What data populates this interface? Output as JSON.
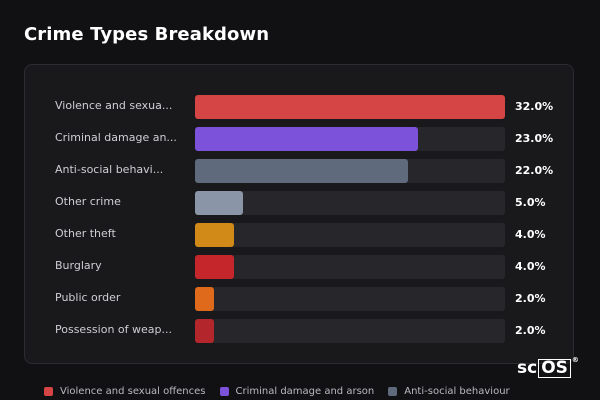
{
  "title": "Crime Types Breakdown",
  "chart_data": {
    "type": "bar",
    "orientation": "horizontal",
    "title": "Crime Types Breakdown",
    "categories": [
      "Violence and sexual offences",
      "Criminal damage and arson",
      "Anti-social behaviour",
      "Other crime",
      "Other theft",
      "Burglary",
      "Public order",
      "Possession of weapons"
    ],
    "display_labels": [
      "Violence and sexua...",
      "Criminal damage an...",
      "Anti-social behavi...",
      "Other crime",
      "Other theft",
      "Burglary",
      "Public order",
      "Possession of weap..."
    ],
    "values": [
      32.0,
      23.0,
      22.0,
      5.0,
      4.0,
      4.0,
      2.0,
      2.0
    ],
    "value_labels": [
      "32.0%",
      "23.0%",
      "22.0%",
      "5.0%",
      "4.0%",
      "4.0%",
      "2.0%",
      "2.0%"
    ],
    "xlim": [
      0,
      32
    ],
    "colors": [
      "#d64545",
      "#7b52d9",
      "#5f6b7d",
      "#8a96a8",
      "#d18a17",
      "#c4262b",
      "#e06a1c",
      "#b3262b"
    ],
    "legend": {
      "placement": "bottom",
      "entries": [
        {
          "name": "Violence and sexual offences",
          "color": "#d64545"
        },
        {
          "name": "Criminal damage and arson",
          "color": "#7b52d9"
        },
        {
          "name": "Anti-social behaviour",
          "color": "#5f6b7d"
        }
      ]
    }
  },
  "watermark": {
    "text_a": "sc",
    "text_b": "OS",
    "mark": "®"
  }
}
